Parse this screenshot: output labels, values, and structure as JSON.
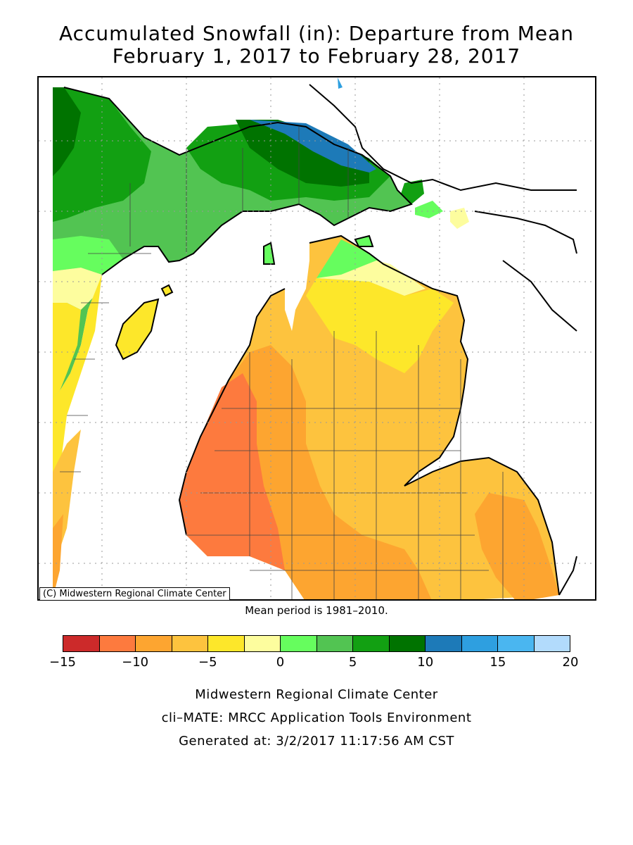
{
  "title_line1": "Accumulated Snowfall (in): Departure from Mean",
  "title_line2": "February 1, 2017 to February 28, 2017",
  "copyright": "(C) Midwestern Regional Climate Center",
  "mean_period": "Mean period is 1981–2010.",
  "legend": {
    "ticks": [
      "−15",
      "−10",
      "−5",
      "0",
      "5",
      "10",
      "15",
      "20"
    ],
    "colors": [
      "#cc2a2a",
      "#fd7a3e",
      "#fda530",
      "#fdc33e",
      "#fde72a",
      "#fdfd9e",
      "#66fd5e",
      "#52c452",
      "#12a012",
      "#007300",
      "#1d7ab8",
      "#2e9fe0",
      "#4ab6f0",
      "#b2dbfc"
    ]
  },
  "footer": {
    "line1": "Midwestern Regional Climate Center",
    "line2": "cli–MATE: MRCC Application Tools Environment",
    "line3": "Generated at: 3/2/2017 11:17:56 AM CST"
  }
}
